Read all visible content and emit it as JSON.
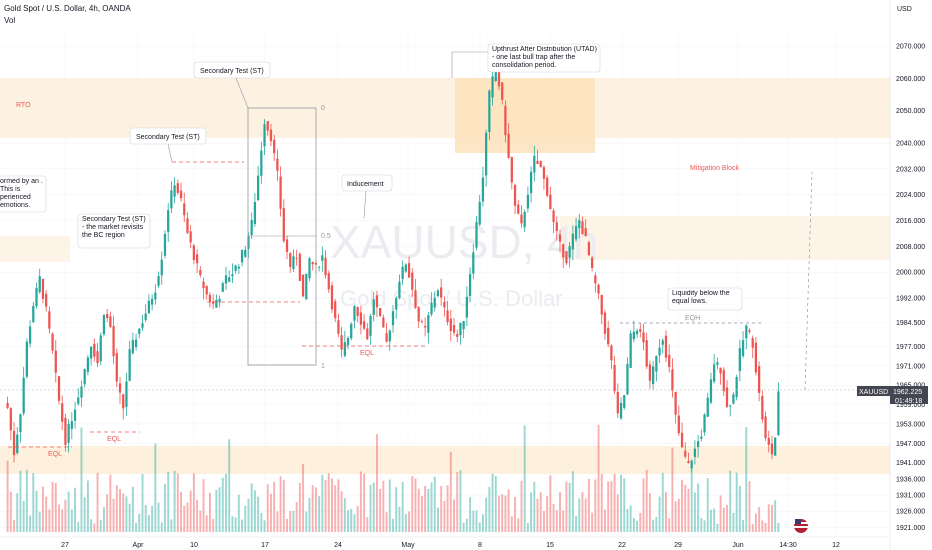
{
  "header": {
    "symbol_title": "Gold Spot / U.S. Dollar, 4h, OANDA",
    "volume_label": "Vol",
    "currency": "USD"
  },
  "watermark": {
    "ticker": "XAUUSD, 4h",
    "name": "Gold Spot / U.S. Dollar"
  },
  "price_marker": {
    "symbol": "XAUUSD",
    "price": "1962.225",
    "countdown": "01:49:18"
  },
  "colors": {
    "up": "#26a69a",
    "down": "#ef5350",
    "zone": "#fde9cc",
    "annotation_red": "#f05a5a",
    "grid": "#f0f3fa"
  },
  "chart_data": {
    "type": "candlestick",
    "ylim": [
      1918,
      2075
    ],
    "y_ticks": [
      2070.0,
      2060.0,
      2050.0,
      2040.0,
      2032.0,
      2024.0,
      2016.0,
      2008.0,
      2000.0,
      1992.0,
      1984.5,
      1977.0,
      1971.0,
      1965.0,
      1959.0,
      1953.0,
      1947.0,
      1941.0,
      1936.0,
      1931.0,
      1926.0,
      1921.0
    ],
    "x_ticks": [
      "27",
      "Apr",
      "10",
      "17",
      "24",
      "May",
      "8",
      "15",
      "22",
      "29",
      "Jun",
      "14:30",
      "12"
    ],
    "current_price": 1962.225,
    "waypoints": [
      [
        0,
        1958
      ],
      [
        2,
        1944
      ],
      [
        4,
        1957
      ],
      [
        6,
        1978
      ],
      [
        8,
        1990
      ],
      [
        10,
        1998
      ],
      [
        12,
        1988
      ],
      [
        14,
        1975
      ],
      [
        16,
        1960
      ],
      [
        18,
        1948
      ],
      [
        20,
        1955
      ],
      [
        22,
        1962
      ],
      [
        24,
        1970
      ],
      [
        26,
        1978
      ],
      [
        28,
        1972
      ],
      [
        30,
        1988
      ],
      [
        32,
        1983
      ],
      [
        34,
        1965
      ],
      [
        36,
        1958
      ],
      [
        38,
        1975
      ],
      [
        40,
        1980
      ],
      [
        42,
        1985
      ],
      [
        44,
        1990
      ],
      [
        46,
        1995
      ],
      [
        48,
        2005
      ],
      [
        50,
        2020
      ],
      [
        52,
        2028
      ],
      [
        54,
        2022
      ],
      [
        56,
        2012
      ],
      [
        58,
        2005
      ],
      [
        60,
        1998
      ],
      [
        62,
        1993
      ],
      [
        64,
        1990
      ],
      [
        66,
        1993
      ],
      [
        68,
        1998
      ],
      [
        70,
        2000
      ],
      [
        72,
        2003
      ],
      [
        74,
        2008
      ],
      [
        76,
        2015
      ],
      [
        78,
        2030
      ],
      [
        80,
        2047
      ],
      [
        82,
        2042
      ],
      [
        84,
        2030
      ],
      [
        86,
        2010
      ],
      [
        88,
        2002
      ],
      [
        90,
        2005
      ],
      [
        92,
        1992
      ],
      [
        94,
        2004
      ],
      [
        96,
        2001
      ],
      [
        98,
        2005
      ],
      [
        100,
        1995
      ],
      [
        102,
        1985
      ],
      [
        104,
        1975
      ],
      [
        106,
        1980
      ],
      [
        108,
        1990
      ],
      [
        110,
        1985
      ],
      [
        112,
        1980
      ],
      [
        114,
        1992
      ],
      [
        116,
        1985
      ],
      [
        118,
        1978
      ],
      [
        120,
        1988
      ],
      [
        122,
        1998
      ],
      [
        124,
        2003
      ],
      [
        126,
        1995
      ],
      [
        128,
        1985
      ],
      [
        130,
        1982
      ],
      [
        132,
        1990
      ],
      [
        134,
        1995
      ],
      [
        136,
        1988
      ],
      [
        138,
        1983
      ],
      [
        140,
        1980
      ],
      [
        142,
        1986
      ],
      [
        144,
        2000
      ],
      [
        146,
        2015
      ],
      [
        148,
        2030
      ],
      [
        150,
        2055
      ],
      [
        152,
        2064
      ],
      [
        154,
        2052
      ],
      [
        156,
        2035
      ],
      [
        158,
        2020
      ],
      [
        160,
        2014
      ],
      [
        162,
        2025
      ],
      [
        164,
        2035
      ],
      [
        166,
        2032
      ],
      [
        168,
        2025
      ],
      [
        170,
        2015
      ],
      [
        172,
        2008
      ],
      [
        174,
        2004
      ],
      [
        176,
        2011
      ],
      [
        178,
        2016
      ],
      [
        180,
        2010
      ],
      [
        182,
        2000
      ],
      [
        184,
        1992
      ],
      [
        186,
        1982
      ],
      [
        188,
        1972
      ],
      [
        190,
        1955
      ],
      [
        192,
        1962
      ],
      [
        194,
        1980
      ],
      [
        196,
        1983
      ],
      [
        198,
        1978
      ],
      [
        200,
        1965
      ],
      [
        202,
        1975
      ],
      [
        204,
        1980
      ],
      [
        206,
        1970
      ],
      [
        208,
        1955
      ],
      [
        210,
        1945
      ],
      [
        212,
        1940
      ],
      [
        214,
        1945
      ],
      [
        216,
        1950
      ],
      [
        218,
        1960
      ],
      [
        220,
        1972
      ],
      [
        222,
        1970
      ],
      [
        224,
        1958
      ],
      [
        226,
        1962
      ],
      [
        228,
        1975
      ],
      [
        230,
        1983
      ],
      [
        232,
        1978
      ],
      [
        234,
        1962
      ],
      [
        236,
        1948
      ],
      [
        238,
        1944
      ],
      [
        239,
        1949
      ],
      [
        240,
        1962
      ]
    ],
    "annotations": [
      {
        "label": "RTO",
        "type": "zone-label"
      },
      {
        "label": "Mitigation Block",
        "type": "zone-label"
      },
      {
        "label": "Secondary Test (ST)",
        "type": "callout"
      },
      {
        "label": "Secondary Test (ST)",
        "type": "callout"
      },
      {
        "label": "Secondary Test (ST) - the market revisits the BC region",
        "type": "callout"
      },
      {
        "label": "ormed by an . This is perienced emotions.",
        "type": "callout"
      },
      {
        "label": "Inducement",
        "type": "callout"
      },
      {
        "label": "Upthrust After Distribution (UTAD) - one last bull trap after the consolidation period.",
        "type": "callout"
      },
      {
        "label": "Liquidity below the equal lows.",
        "type": "callout"
      },
      {
        "label": "EQL",
        "type": "level"
      },
      {
        "label": "EQL",
        "type": "level"
      },
      {
        "label": "EQL",
        "type": "level"
      },
      {
        "label": "EQH",
        "type": "level"
      },
      {
        "label": "0",
        "type": "fib"
      },
      {
        "label": "0.5",
        "type": "fib"
      },
      {
        "label": "1",
        "type": "fib"
      }
    ]
  }
}
